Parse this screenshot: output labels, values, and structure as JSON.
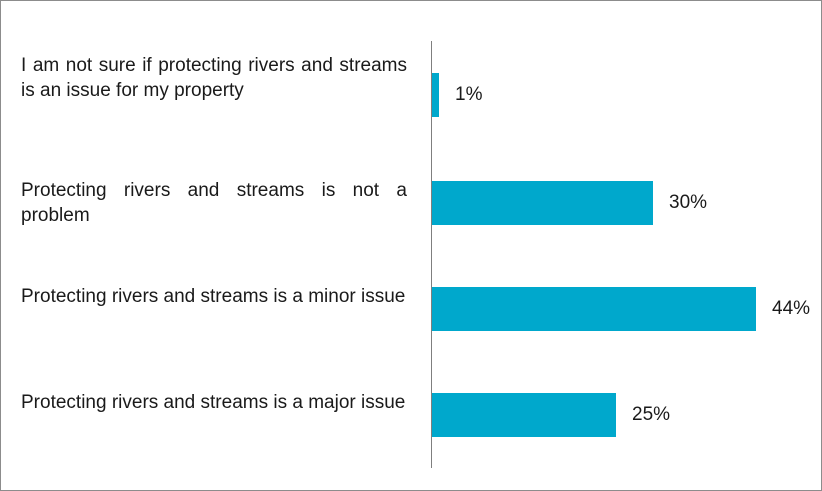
{
  "chart_data": {
    "type": "bar",
    "orientation": "horizontal",
    "categories": [
      "I am not sure if protecting rivers and streams is an issue for my property",
      "Protecting rivers and streams is not a problem",
      "Protecting rivers and streams is a minor issue",
      "Protecting rivers and streams is a major issue"
    ],
    "values": [
      1,
      30,
      44,
      25
    ],
    "data_labels": [
      "1%",
      "30%",
      "44%",
      "25%"
    ],
    "unit": "%",
    "xlim": [
      0,
      44
    ],
    "bar_color": "#00a8cc",
    "grid": false,
    "legend": "none"
  }
}
